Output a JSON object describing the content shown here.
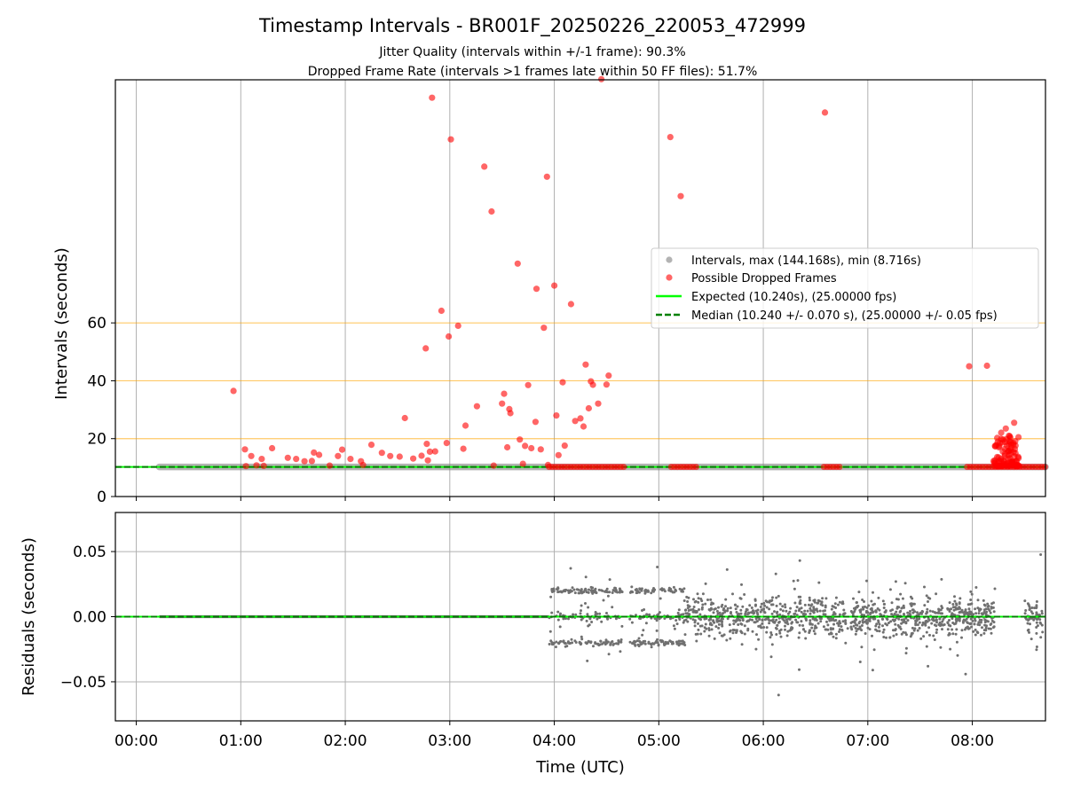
{
  "figure": {
    "title": "Timestamp Intervals - BR001F_20250226_220053_472999",
    "subtitle_1": "Jitter Quality (intervals within +/-1 frame): 90.3%",
    "subtitle_2": "Dropped Frame Rate (intervals >1 frames late within 50 FF files): 51.7%"
  },
  "colors": {
    "intervals": "#808080",
    "dropped": "#ff0000",
    "expected": "#00ff00",
    "median": "#008000",
    "threshold": "#ffa500",
    "grid": "#b0b0b0"
  },
  "chart_data": [
    {
      "type": "scatter",
      "panel": "intervals",
      "xlabel": "",
      "ylabel": "Intervals (seconds)",
      "x_unit": "hours UTC",
      "xlim": [
        -0.2,
        8.7
      ],
      "ylim": [
        0,
        144
      ],
      "yticks": [
        0,
        20,
        40,
        60
      ],
      "ytick_labels": [
        "0",
        "20",
        "40",
        "60"
      ],
      "xticks": [
        0,
        1,
        2,
        3,
        4,
        5,
        6,
        7,
        8
      ],
      "threshold_lines": [
        20,
        40,
        60
      ],
      "grid": "vertical only",
      "legend_position": "center-right",
      "legend": [
        "Intervals, max (144.168s), min (8.716s)",
        "Possible Dropped Frames",
        "Expected (10.240s), (25.00000 fps)",
        "Median (10.240 +/- 0.070 s), (25.00000 +/- 0.05 fps)"
      ],
      "expected_value": 10.24,
      "median_value": 10.24,
      "interval_segments": [
        [
          0.22,
          8.7
        ]
      ],
      "dropped_frames": {
        "x": [
          0.93,
          1.04,
          1.05,
          1.1,
          1.15,
          1.2,
          1.22,
          1.3,
          1.45,
          1.53,
          1.61,
          1.68,
          1.7,
          1.75,
          1.85,
          1.93,
          1.97,
          2.05,
          2.15,
          2.17,
          2.25,
          2.35,
          2.43,
          2.52,
          2.57,
          2.65,
          2.73,
          2.77,
          2.78,
          2.79,
          2.81,
          2.83,
          2.86,
          2.92,
          2.97,
          2.99,
          3.01,
          3.08,
          3.13,
          3.15,
          3.26,
          3.33,
          3.4,
          3.42,
          3.5,
          3.52,
          3.55,
          3.57,
          3.58,
          3.65,
          3.67,
          3.7,
          3.72,
          3.75,
          3.78,
          3.82,
          3.83,
          3.87,
          3.9,
          3.93,
          3.94,
          4.0,
          4.02,
          4.04,
          4.08,
          4.1,
          4.16,
          4.2,
          4.25,
          4.28,
          4.3,
          4.33,
          4.35,
          4.37,
          4.42,
          4.45,
          4.5,
          4.52,
          5.11,
          5.21,
          6.59,
          7.97,
          8.14,
          8.32,
          8.35,
          8.37,
          8.4
        ],
        "y": [
          36.5,
          16.3,
          10.5,
          14.0,
          10.8,
          13.0,
          10.6,
          16.7,
          13.4,
          13.0,
          12.2,
          12.3,
          15.2,
          14.4,
          10.7,
          14.0,
          16.2,
          13.0,
          12.2,
          10.9,
          17.9,
          15.1,
          14.0,
          13.8,
          27.1,
          13.1,
          14.1,
          51.2,
          18.2,
          12.5,
          15.5,
          137.8,
          15.6,
          64.2,
          18.5,
          55.3,
          123.4,
          59.0,
          16.5,
          24.5,
          31.2,
          114.0,
          98.5,
          10.7,
          32.1,
          35.5,
          17.0,
          30.2,
          28.8,
          80.5,
          19.7,
          11.3,
          17.5,
          38.5,
          16.7,
          25.8,
          71.8,
          16.3,
          58.3,
          110.5,
          10.9,
          72.9,
          28.0,
          14.3,
          39.5,
          17.6,
          66.5,
          26.1,
          27.0,
          24.2,
          45.6,
          30.5,
          39.8,
          38.6,
          32.1,
          144.2,
          38.7,
          41.8,
          124.2,
          103.8,
          132.7,
          45.0,
          45.2,
          23.5,
          21.0,
          18.8,
          25.5
        ]
      }
    },
    {
      "type": "scatter",
      "panel": "residuals",
      "xlabel": "Time (UTC)",
      "ylabel": "Residuals (seconds)",
      "x_unit": "hours UTC",
      "xlim": [
        -0.2,
        8.7
      ],
      "ylim": [
        -0.08,
        0.08
      ],
      "yticks": [
        -0.05,
        0.0,
        0.05
      ],
      "ytick_labels": [
        "−0.05",
        "0.00",
        "0.05"
      ],
      "xticks": [
        0,
        1,
        2,
        3,
        4,
        5,
        6,
        7,
        8
      ],
      "xtick_labels": [
        "00:00",
        "01:00",
        "02:00",
        "03:00",
        "04:00",
        "05:00",
        "06:00",
        "07:00",
        "08:00"
      ],
      "grid": "both",
      "zero_segment": [
        0.22,
        3.95
      ],
      "scatter_start": 3.95
    }
  ]
}
